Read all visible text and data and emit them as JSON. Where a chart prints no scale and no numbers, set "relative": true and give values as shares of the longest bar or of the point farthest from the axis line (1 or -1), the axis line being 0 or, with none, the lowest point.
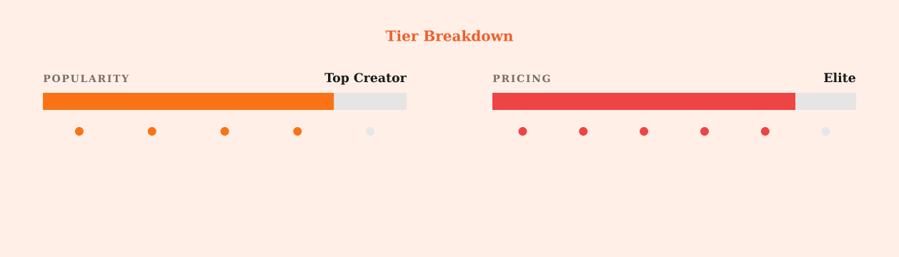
{
  "chart_data": [
    {
      "type": "other",
      "title": "Tier Breakdown"
    },
    {
      "type": "bar",
      "orientation": "horizontal",
      "stacked": true,
      "relative": true,
      "title": "POPULARITY",
      "annotations": [
        "Top Creator"
      ],
      "categories": [
        null
      ],
      "series": [
        {
          "color": "#f97316",
          "values": [
            0.8
          ]
        },
        {
          "color": "#e5e5e5",
          "values": [
            0.2
          ]
        }
      ]
    },
    {
      "type": "bar",
      "orientation": "horizontal",
      "stacked": true,
      "relative": true,
      "title": "PRICING",
      "annotations": [
        "Elite"
      ],
      "categories": [
        null
      ],
      "series": [
        {
          "color": "#ef4444",
          "values": [
            0.833
          ]
        },
        {
          "color": "#e5e5e5",
          "values": [
            0.167
          ]
        }
      ]
    }
  ]
}
